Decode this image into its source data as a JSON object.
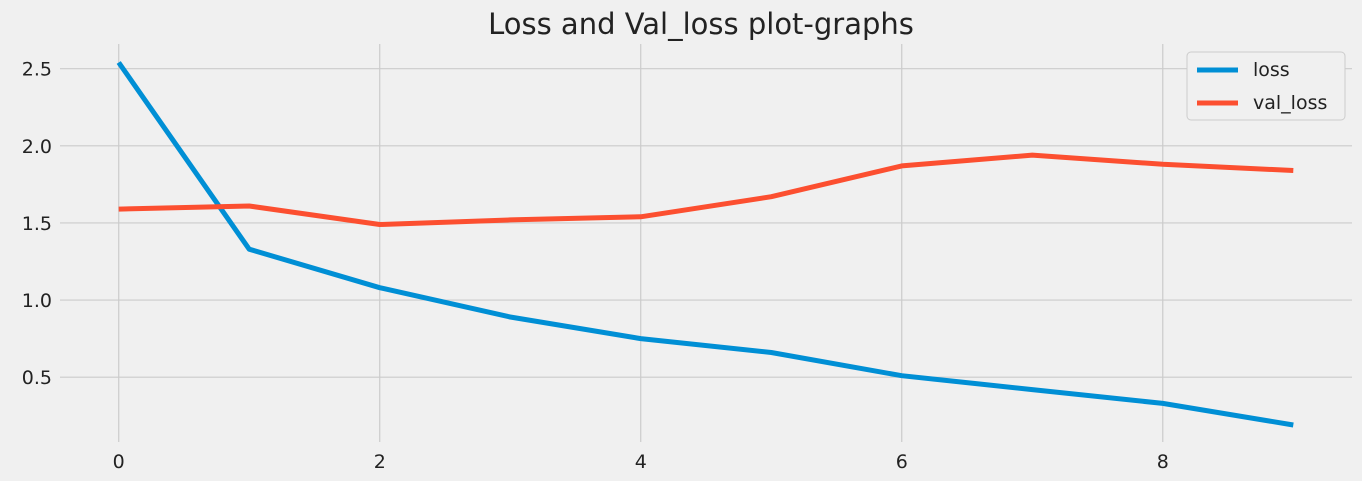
{
  "chart_data": {
    "type": "line",
    "title": "Loss and Val_loss plot-graphs",
    "xlabel": "",
    "ylabel": "",
    "x": [
      0,
      1,
      2,
      3,
      4,
      5,
      6,
      7,
      8,
      9
    ],
    "xlim": [
      -0.45,
      9.45
    ],
    "ylim": [
      0.08,
      2.66
    ],
    "xticks": [
      0,
      2,
      4,
      6,
      8
    ],
    "xtick_labels": [
      "0",
      "2",
      "4",
      "6",
      "8"
    ],
    "yticks": [
      0.5,
      1.0,
      1.5,
      2.0,
      2.5
    ],
    "ytick_labels": [
      "0.5",
      "1.0",
      "1.5",
      "2.0",
      "2.5"
    ],
    "grid": true,
    "legend_position": "top-right",
    "series": [
      {
        "name": "loss",
        "color": "#008fd5",
        "values": [
          2.54,
          1.33,
          1.08,
          0.89,
          0.75,
          0.66,
          0.51,
          0.42,
          0.33,
          0.19
        ]
      },
      {
        "name": "val_loss",
        "color": "#fc4f30",
        "values": [
          1.59,
          1.61,
          1.49,
          1.52,
          1.54,
          1.67,
          1.87,
          1.94,
          1.88,
          1.84
        ]
      }
    ]
  }
}
